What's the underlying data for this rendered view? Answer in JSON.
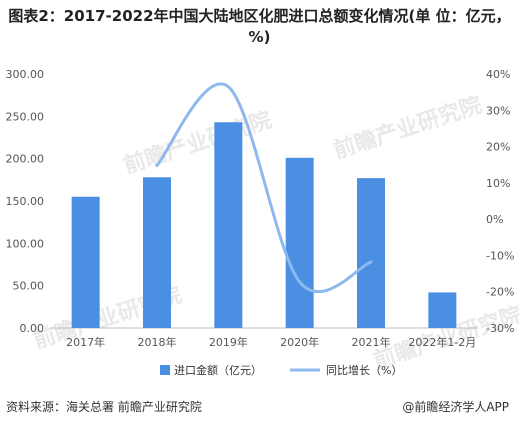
{
  "title": "图表2：2017-2022年中国大陆地区化肥进口总额变化情况(单 位：亿元，%)",
  "source": "资料来源：海关总署 前瞻产业研究院",
  "brand": "@前瞻经济学人APP",
  "watermark": "前瞻产业研究院",
  "chart_data": {
    "type": "bar",
    "categories": [
      "2017年",
      "2018年",
      "2019年",
      "2020年",
      "2021年",
      "2022年1-2月"
    ],
    "series": [
      {
        "name": "进口金额（亿元）",
        "type": "bar",
        "axis": "left",
        "color": "#4a8fe2",
        "values": [
          155,
          178,
          243,
          201,
          177,
          42
        ]
      },
      {
        "name": "同比增长（%）",
        "type": "line",
        "axis": "right",
        "color": "#8fb8ee",
        "values": [
          null,
          14.8,
          36.5,
          -17.3,
          -11.8,
          null
        ]
      }
    ],
    "y_left": {
      "ylim": [
        0,
        300
      ],
      "ticks": [
        "0.00",
        "50.00",
        "100.00",
        "150.00",
        "200.00",
        "250.00",
        "300.00"
      ]
    },
    "y_right": {
      "ylim": [
        -30,
        40
      ],
      "ticks": [
        "-30%",
        "-20%",
        "-10%",
        "0%",
        "10%",
        "20%",
        "30%",
        "40%"
      ]
    },
    "grid": false,
    "legend_position": "bottom"
  }
}
